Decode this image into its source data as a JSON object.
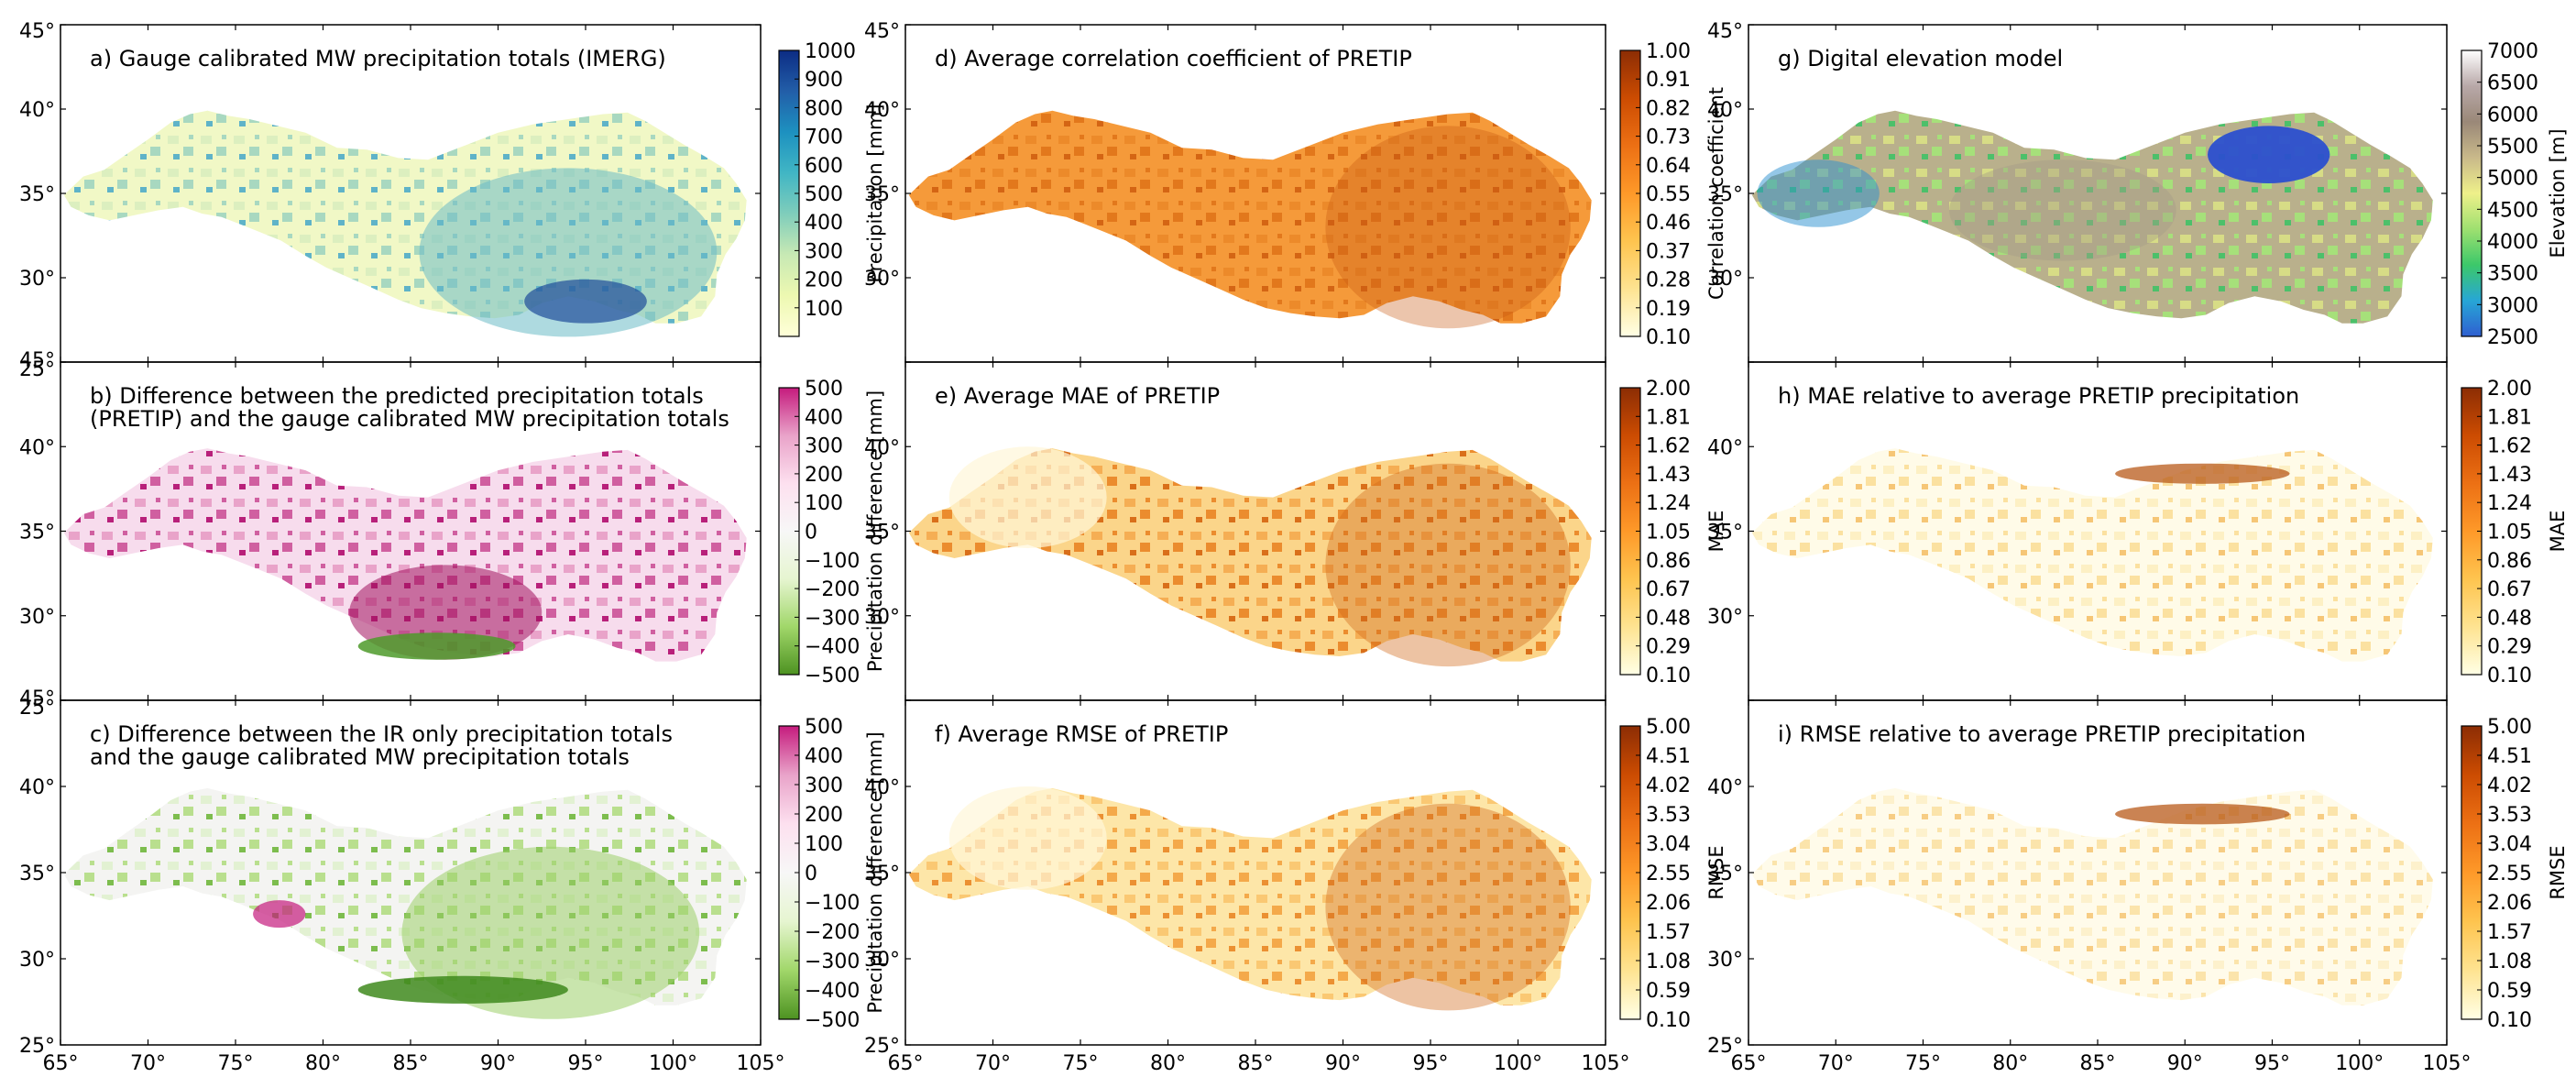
{
  "figure": {
    "columns": [
      {
        "x_ticks": [
          "65°",
          "70°",
          "75°",
          "80°",
          "85°",
          "90°",
          "95°",
          "100°",
          "105°"
        ]
      },
      {
        "x_ticks": [
          "65°",
          "70°",
          "75°",
          "80°",
          "85°",
          "90°",
          "95°",
          "100°",
          "105°"
        ]
      },
      {
        "x_ticks": [
          "65°",
          "70°",
          "75°",
          "80°",
          "85°",
          "90°",
          "95°",
          "100°",
          "105°"
        ]
      }
    ],
    "y_ticks": {
      "top_panel": [
        "45°",
        "40°",
        "35°",
        "30°",
        "25°"
      ],
      "middle_panel": [
        "25°",
        "40°",
        "35°",
        "30°"
      ],
      "bottom_panel": [
        "45°",
        "25°",
        "40°",
        "35°",
        "30°",
        "25°"
      ]
    },
    "corner_overlap_labels": {
      "row2_top": "45°",
      "row2_bottom": "25°",
      "row3_top": "45°",
      "row3_bottom": "25°"
    }
  },
  "chart_data": [
    {
      "type": "heatmap",
      "id": "a",
      "title_lines": [
        "a) Gauge calibrated MW precipitation totals (IMERG)"
      ],
      "colorbar": {
        "label": "Precipitation [mm]",
        "ticks": [
          "1000",
          "900",
          "800",
          "700",
          "600",
          "500",
          "400",
          "300",
          "200",
          "100"
        ],
        "range": [
          0,
          1000
        ],
        "colormap": [
          "#ffffd9",
          "#edf8b1",
          "#c7e9b4",
          "#7fcdbb",
          "#41b6c4",
          "#1d91c0",
          "#225ea8",
          "#0c2c84"
        ]
      },
      "map_fill": [
        "#f1f8c6",
        "#dcefbf",
        "#a8d8c0",
        "#5fb3c8"
      ]
    },
    {
      "type": "heatmap",
      "id": "b",
      "title_lines": [
        "b) Difference between the predicted precipitation totals",
        "(PRETIP) and the gauge calibrated MW precipitation totals"
      ],
      "colorbar": {
        "label": "Precipitation difference [mm]",
        "ticks": [
          "500",
          "400",
          "300",
          "200",
          "100",
          "0",
          "−100",
          "−200",
          "−300",
          "−400",
          "−500"
        ],
        "range": [
          -500,
          500
        ],
        "colormap": [
          "#4d9221",
          "#a1d76a",
          "#e6f5d0",
          "#f7f7f7",
          "#fde0ef",
          "#e9a3c9",
          "#c51b7d"
        ]
      },
      "map_fill": [
        "#f7dced",
        "#e9a3c9",
        "#d05fa0",
        "#b8207a"
      ]
    },
    {
      "type": "heatmap",
      "id": "c",
      "title_lines": [
        "c) Difference between the IR only precipitation totals",
        "and the gauge calibrated MW precipitation totals"
      ],
      "colorbar": {
        "label": "Precipitation difference [mm]",
        "ticks": [
          "500",
          "400",
          "300",
          "200",
          "100",
          "0",
          "−100",
          "−200",
          "−300",
          "−400",
          "−500"
        ],
        "range": [
          -500,
          500
        ],
        "colormap": [
          "#4d9221",
          "#a1d76a",
          "#e6f5d0",
          "#f7f7f7",
          "#fde0ef",
          "#e9a3c9",
          "#c51b7d"
        ]
      },
      "map_fill": [
        "#f4f4f2",
        "#e2f1d2",
        "#b9df8e",
        "#7dbd4e"
      ]
    },
    {
      "type": "heatmap",
      "id": "d",
      "title_lines": [
        "d) Average correlation coefficient of PRETIP"
      ],
      "colorbar": {
        "label": "Correlation coefficient",
        "ticks": [
          "1.00",
          "0.91",
          "0.82",
          "0.73",
          "0.64",
          "0.55",
          "0.46",
          "0.37",
          "0.28",
          "0.19",
          "0.10"
        ],
        "range": [
          0.1,
          1.0
        ],
        "colormap": [
          "#ffffe5",
          "#fee391",
          "#fec44f",
          "#fe9929",
          "#ec7014",
          "#cc4c02",
          "#8c2d04"
        ]
      },
      "map_fill": [
        "#f59a3a",
        "#ec8a2a",
        "#e2781c",
        "#d46514"
      ]
    },
    {
      "type": "heatmap",
      "id": "e",
      "title_lines": [
        "e) Average MAE of PRETIP"
      ],
      "colorbar": {
        "label": "MAE",
        "ticks": [
          "2.00",
          "1.81",
          "1.62",
          "1.43",
          "1.24",
          "1.05",
          "0.86",
          "0.67",
          "0.48",
          "0.29",
          "0.10"
        ],
        "range": [
          0.1,
          2.0
        ],
        "colormap": [
          "#ffffe5",
          "#fee391",
          "#fec44f",
          "#fe9929",
          "#ec7014",
          "#cc4c02",
          "#8c2d04"
        ]
      },
      "map_fill": [
        "#fbd58a",
        "#f5ae54",
        "#eb8c2e",
        "#d96f1a"
      ]
    },
    {
      "type": "heatmap",
      "id": "f",
      "title_lines": [
        "f) Average RMSE of PRETIP"
      ],
      "colorbar": {
        "label": "RMSE",
        "ticks": [
          "5.00",
          "4.51",
          "4.02",
          "3.53",
          "3.04",
          "2.55",
          "2.06",
          "1.57",
          "1.08",
          "0.59",
          "0.10"
        ],
        "range": [
          0.1,
          5.0
        ],
        "colormap": [
          "#ffffe5",
          "#fee391",
          "#fec44f",
          "#fe9929",
          "#ec7014",
          "#cc4c02",
          "#8c2d04"
        ]
      },
      "map_fill": [
        "#fde6a8",
        "#fac873",
        "#f4a94a",
        "#eb9032"
      ]
    },
    {
      "type": "heatmap",
      "id": "g",
      "title_lines": [
        "g) Digital elevation model"
      ],
      "colorbar": {
        "label": "Elevation [m]",
        "ticks": [
          "7000",
          "6500",
          "6000",
          "5500",
          "5000",
          "4500",
          "4000",
          "3500",
          "3000",
          "2500"
        ],
        "range": [
          2500,
          7000
        ],
        "colormap": [
          "#2f5fd0",
          "#27a6d6",
          "#3cc86a",
          "#9ee070",
          "#eef08a",
          "#c9b98a",
          "#9a8878",
          "#b8a8a8",
          "#ffffff"
        ]
      },
      "map_fill": [
        "#b9b08c",
        "#d7dc86",
        "#a6e07a",
        "#4cc06a"
      ],
      "lake": "#2b4fcf"
    },
    {
      "type": "heatmap",
      "id": "h",
      "title_lines": [
        "h) MAE relative to average PRETIP precipitation"
      ],
      "colorbar": {
        "label": "MAE",
        "ticks": [
          "2.00",
          "1.81",
          "1.62",
          "1.43",
          "1.24",
          "1.05",
          "0.86",
          "0.67",
          "0.48",
          "0.29",
          "0.10"
        ],
        "range": [
          0.1,
          2.0
        ],
        "colormap": [
          "#ffffe5",
          "#fee391",
          "#fec44f",
          "#fe9929",
          "#ec7014",
          "#cc4c02",
          "#8c2d04"
        ]
      },
      "map_fill": [
        "#fffbe8",
        "#fdf0c4",
        "#fbe1a0",
        "#f6c676"
      ]
    },
    {
      "type": "heatmap",
      "id": "i",
      "title_lines": [
        "i) RMSE relative to average PRETIP precipitation"
      ],
      "colorbar": {
        "label": "RMSE",
        "ticks": [
          "5.00",
          "4.51",
          "4.02",
          "3.53",
          "3.04",
          "2.55",
          "2.06",
          "1.57",
          "1.08",
          "0.59",
          "0.10"
        ],
        "range": [
          0.1,
          5.0
        ],
        "colormap": [
          "#ffffe5",
          "#fee391",
          "#fec44f",
          "#fe9929",
          "#ec7014",
          "#cc4c02",
          "#8c2d04"
        ]
      },
      "map_fill": [
        "#fffbea",
        "#fdf1cc",
        "#fbe4ab",
        "#f7cd84"
      ]
    }
  ]
}
